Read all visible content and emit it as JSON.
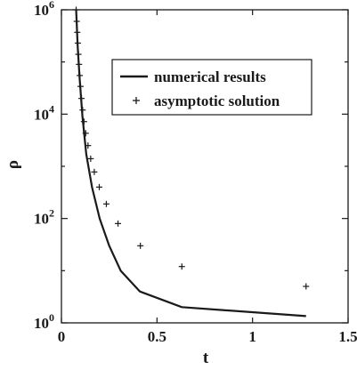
{
  "chart_data": {
    "type": "line",
    "title": "",
    "xlabel": "t",
    "ylabel": "ρ",
    "xlim": [
      0,
      1.5
    ],
    "ylim": [
      1,
      1000000
    ],
    "yscale": "log",
    "grid": false,
    "legend_position": "top-right",
    "x_ticks": [
      0,
      0.5,
      1,
      1.5
    ],
    "x_tick_labels": [
      "0",
      "0.5",
      "1",
      "1.5"
    ],
    "y_ticks": [
      1,
      100,
      10000,
      1000000
    ],
    "y_tick_labels": [
      {
        "base": "10",
        "exp": "0"
      },
      {
        "base": "10",
        "exp": "2"
      },
      {
        "base": "10",
        "exp": "4"
      },
      {
        "base": "10",
        "exp": "6"
      }
    ],
    "series": [
      {
        "name": "numerical results",
        "style": "solid-line",
        "color": "#1a1a1a",
        "x": [
          0.077,
          0.085,
          0.095,
          0.11,
          0.13,
          0.16,
          0.2,
          0.25,
          0.31,
          0.41,
          0.63,
          1.28
        ],
        "y": [
          1000000,
          200000,
          50000,
          9000,
          1700,
          400,
          100,
          30,
          10,
          4,
          2,
          1.35
        ]
      },
      {
        "name": "asymptotic solution",
        "style": "plus-markers",
        "color": "#1a1a1a",
        "x": [
          0.077,
          0.08,
          0.083,
          0.086,
          0.089,
          0.092,
          0.096,
          0.1,
          0.105,
          0.111,
          0.118,
          0.127,
          0.139,
          0.153,
          0.172,
          0.198,
          0.235,
          0.296,
          0.413,
          0.63,
          1.28
        ],
        "y": [
          1000000,
          600000,
          370000,
          230000,
          140000,
          90000,
          55000,
          34000,
          20000,
          12000,
          7200,
          4300,
          2500,
          1400,
          780,
          400,
          190,
          80,
          30,
          12,
          5
        ]
      }
    ]
  }
}
